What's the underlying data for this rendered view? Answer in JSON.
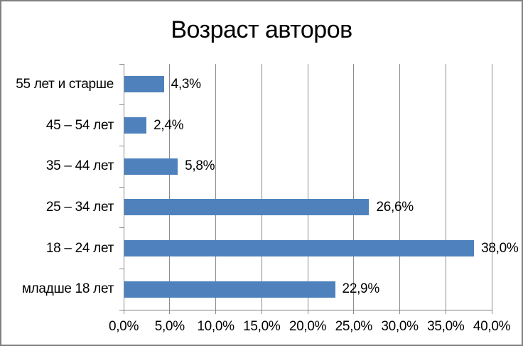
{
  "chart_data": {
    "type": "bar",
    "orientation": "horizontal",
    "title": "Возраст авторов",
    "categories": [
      "55 лет и старше",
      "45 – 54 лет",
      "35 – 44 лет",
      "25 – 34 лет",
      "18 – 24 лет",
      "младше 18 лет"
    ],
    "values": [
      4.3,
      2.4,
      5.8,
      26.6,
      38.0,
      22.9
    ],
    "value_labels": [
      "4,3%",
      "2,4%",
      "5,8%",
      "26,6%",
      "38,0%",
      "22,9%"
    ],
    "x_ticks": [
      {
        "value": 0,
        "label": "0,0%"
      },
      {
        "value": 5,
        "label": "5,0%"
      },
      {
        "value": 10,
        "label": "10,0%"
      },
      {
        "value": 15,
        "label": "15,0%"
      },
      {
        "value": 20,
        "label": "20,0%"
      },
      {
        "value": 25,
        "label": "25,0%"
      },
      {
        "value": 30,
        "label": "30,0%"
      },
      {
        "value": 35,
        "label": "35,0%"
      },
      {
        "value": 40,
        "label": "40,0%"
      }
    ],
    "xlim": [
      0,
      40
    ],
    "xlabel": "",
    "ylabel": "",
    "grid": true,
    "legend": false,
    "colors": {
      "bar": "#4F81BD",
      "gridline": "#8C8C8C",
      "axis": "#808080",
      "text": "#000000",
      "frame_border": "#808080",
      "background": "#FFFFFF"
    }
  }
}
